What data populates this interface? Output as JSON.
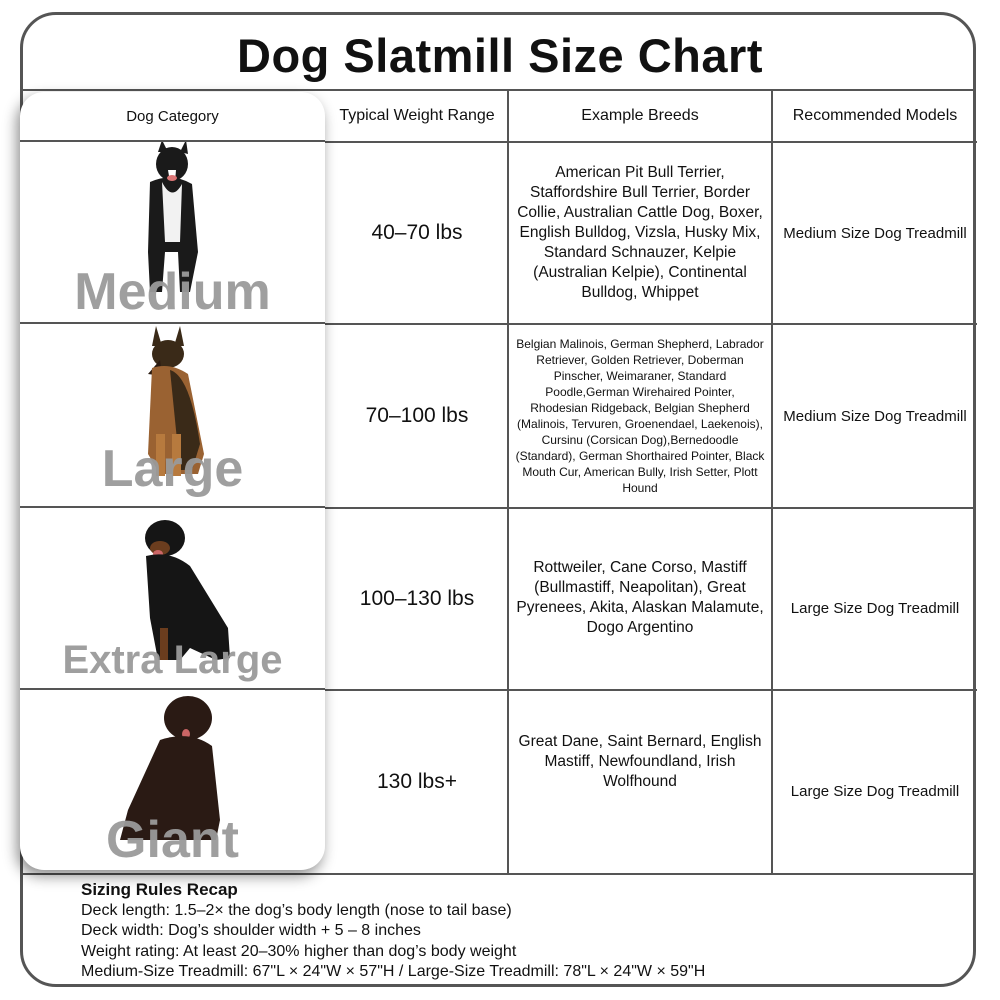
{
  "title": "Dog Slatmill Size Chart",
  "table": {
    "headers": [
      "Dog Category",
      "Typical Weight Range",
      "Example Breeds",
      "Recommended Models"
    ],
    "rows": [
      {
        "category": "Medium",
        "weight": "40–70 lbs",
        "breeds": "American Pit Bull Terrier, Staffordshire Bull Terrier, Border Collie, Australian Cattle Dog, Boxer, English Bulldog, Vizsla, Husky Mix, Standard Schnauzer, Kelpie (Australian Kelpie), Continental Bulldog, Whippet",
        "model": "Medium Size Dog Treadmill",
        "dog_color": "#1a1a1a"
      },
      {
        "category": "Large",
        "weight": "70–100 lbs",
        "breeds": "Belgian Malinois, German Shepherd, Labrador Retriever, Golden Retriever, Doberman Pinscher, Weimaraner, Standard Poodle,German Wirehaired Pointer, Rhodesian Ridgeback, Belgian Shepherd (Malinois, Tervuren, Groenendael, Laekenois), Cursinu (Corsican Dog),Bernedoodle (Standard), German Shorthaired Pointer, Black Mouth Cur, American Bully, Irish Setter, Plott Hound",
        "model": "Medium Size Dog Treadmill",
        "dog_color": "#8a5a2b"
      },
      {
        "category": "Extra Large",
        "weight": "100–130 lbs",
        "breeds": "Rottweiler, Cane Corso, Mastiff (Bullmastiff, Neapolitan), Great Pyrenees, Akita, Alaskan Malamute, Dogo Argentino",
        "model": "Large Size Dog Treadmill",
        "dog_color": "#151515"
      },
      {
        "category": "Giant",
        "weight": "130 lbs+",
        "breeds": "Great Dane, Saint Bernard, English Mastiff, Newfoundland, Irish Wolfhound",
        "model": "Large Size Dog Treadmill",
        "dog_color": "#2a1a14"
      }
    ]
  },
  "recap": {
    "title": "Sizing Rules Recap",
    "lines": [
      "Deck length: 1.5–2× the dog’s body length (nose to tail base)",
      "Deck width: Dog’s shoulder width + 5 – 8 inches",
      "Weight rating: At least 20–30% higher than dog’s body weight",
      "Medium-Size Treadmill: 67\"L × 24\"W × 57\"H / Large-Size Treadmill: 78\"L × 24\"W × 59\"H"
    ]
  }
}
